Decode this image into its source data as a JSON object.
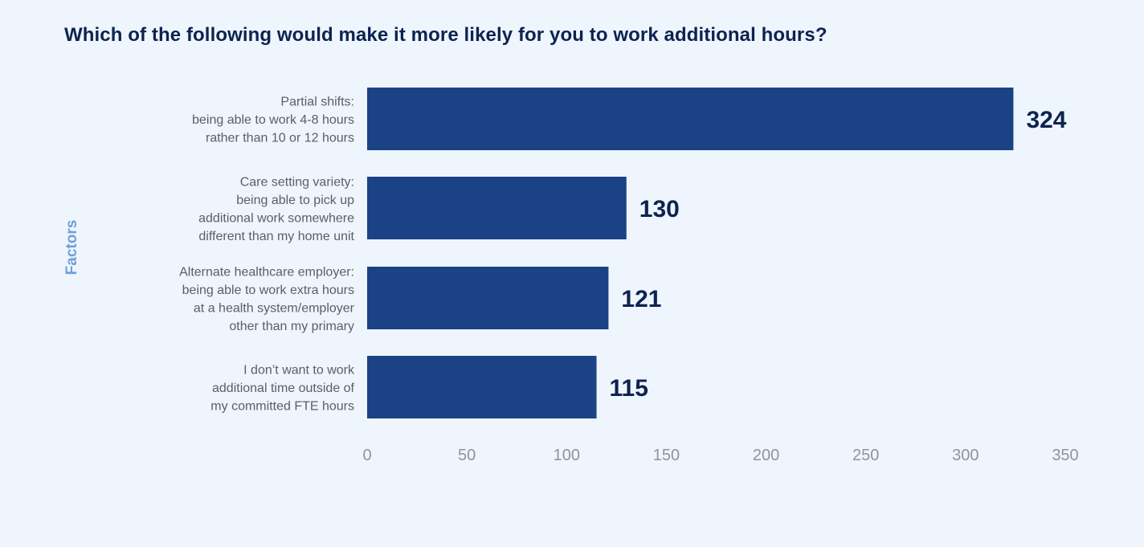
{
  "chart_data": {
    "type": "bar",
    "orientation": "horizontal",
    "title": "Which of the following would make it more likely for you to work additional hours?",
    "ylabel": "Factors",
    "xlabel": "",
    "categories": [
      [
        "Partial shifts:",
        "being able to work 4-8 hours",
        "rather than 10 or 12 hours"
      ],
      [
        "Care setting variety:",
        "being able to pick up",
        "additional work somewhere",
        "different than my home unit"
      ],
      [
        "Alternate healthcare employer:",
        "being able to work extra hours",
        "at a health system/employer",
        "other than my primary"
      ],
      [
        "I don’t want to work",
        "additional time outside of",
        "my committed FTE hours"
      ]
    ],
    "values": [
      324,
      130,
      121,
      115
    ],
    "xlim": [
      0,
      350
    ],
    "xticks": [
      0,
      50,
      100,
      150,
      200,
      250,
      300,
      350
    ],
    "grid": false,
    "bar_color": "#1b4285",
    "value_color": "#0d2350"
  }
}
